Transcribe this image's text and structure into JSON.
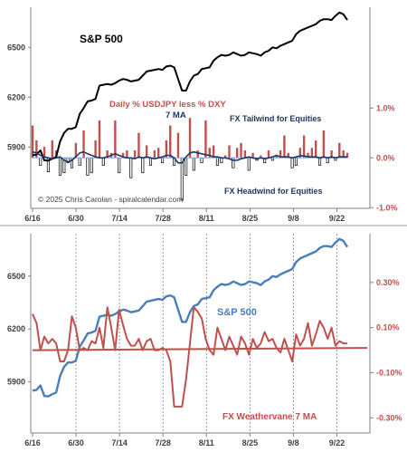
{
  "chart_data": [
    {
      "type": "line",
      "title": "",
      "x_ticks": [
        "6/16",
        "6/30",
        "7/14",
        "7/28",
        "8/11",
        "8/25",
        "9/8",
        "9/22"
      ],
      "left_axis": {
        "ticks": [
          5900,
          6200,
          6500
        ],
        "ylim": [
          5520,
          6720
        ],
        "tick_labels": [
          "5900",
          "6200",
          "6500"
        ]
      },
      "right_axis": {
        "ticks": [
          -1.0,
          0.0,
          1.0
        ],
        "ylim": [
          -1.05,
          2.95
        ],
        "tick_labels": [
          "-1.0%",
          "0.0%",
          "1.0%"
        ]
      },
      "annotations": {
        "sp500": "S&P 500",
        "daily": "Daily % USDJPY less % DXY",
        "ma7": "7 MA",
        "tailwind": "FX Tailwind for Equities",
        "headwind": "FX Headwind for Equities",
        "copyright": "© 2025 Chris Carolan - spiralcalendar.com"
      },
      "colors": {
        "sp500": "#000000",
        "bars": "#c0504d",
        "ma": "#1f3864",
        "right_axis": "#c0504d"
      },
      "series": [
        {
          "name": "S&P 500",
          "axis": "left",
          "values": [
            5850,
            5855,
            5880,
            5820,
            5818,
            5830,
            5840,
            5935,
            5985,
            6010,
            6010,
            6020,
            6100,
            6135,
            6175,
            6180,
            6190,
            6270,
            6275,
            6280,
            6275,
            6285,
            6300,
            6310,
            6305,
            6295,
            6300,
            6305,
            6330,
            6355,
            6360,
            6365,
            6370,
            6365,
            6385,
            6390,
            6380,
            6310,
            6240,
            6240,
            6295,
            6330,
            6340,
            6370,
            6375,
            6380,
            6420,
            6440,
            6455,
            6450,
            6455,
            6470,
            6460,
            6450,
            6455,
            6470,
            6465,
            6460,
            6450,
            6470,
            6480,
            6500,
            6495,
            6510,
            6520,
            6530,
            6540,
            6580,
            6600,
            6610,
            6620,
            6630,
            6640,
            6660,
            6670,
            6670,
            6665,
            6690,
            6710,
            6700,
            6665
          ]
        },
        {
          "name": "",
          "axis": "right",
          "type": "bar",
          "values": [
            0.65,
            0.35,
            -0.15,
            0.22,
            -0.28,
            0.35,
            0.15,
            -0.35,
            -0.3,
            -0.1,
            -0.2,
            0.3,
            -0.15,
            0.55,
            -0.35,
            -0.3,
            0.35,
            0.75,
            -0.15,
            0.15,
            0.1,
            0.75,
            -0.3,
            0.1,
            0.15,
            -0.4,
            0.15,
            0.5,
            -0.3,
            0.25,
            -0.15,
            0.15,
            0.2,
            -0.1,
            0.35,
            0.65,
            -0.15,
            0.5,
            -0.85,
            -0.35,
            0.8,
            -0.25,
            0.15,
            -0.1,
            0.75,
            0.2,
            0.25,
            -0.15,
            -0.1,
            0.05,
            0.25,
            -0.2,
            0.2,
            0.3,
            0.15,
            -0.25,
            0.1,
            -0.05,
            0.05,
            -0.1,
            0.15,
            -0.05,
            0.05,
            0.15,
            0.45,
            0.1,
            -0.2,
            -0.15,
            0.2,
            0.45,
            0.1,
            0.2,
            0.35,
            -0.15,
            0.55,
            -0.1,
            0.15,
            -0.05,
            0.3,
            0.15,
            0.1
          ]
        },
        {
          "name": "",
          "axis": "right",
          "values": [
            0.12,
            0.1,
            0.05,
            0.02,
            0.0,
            -0.02,
            0.0,
            0.02,
            -0.05,
            -0.08,
            -0.05,
            0.02,
            0.1,
            0.12,
            0.08,
            0.05,
            0.02,
            0.0,
            0.0,
            0.02,
            0.05,
            0.08,
            0.05,
            0.02,
            0.0,
            0.0,
            -0.02,
            0.02,
            0.0,
            0.02,
            0.0,
            -0.02,
            0.0,
            0.02,
            0.05,
            0.05,
            0.0,
            -0.1,
            -0.1,
            0.02,
            0.1,
            0.12,
            0.1,
            0.08,
            0.06,
            0.05,
            0.02,
            0.02,
            0.0,
            0.0,
            -0.02,
            -0.05,
            -0.05,
            -0.02,
            0.0,
            0.02,
            0.0,
            -0.02,
            0.0,
            -0.02,
            0.0,
            0.02,
            0.05,
            0.02,
            0.02,
            0.02,
            0.0,
            0.02,
            0.04,
            0.04,
            0.02,
            0.02,
            0.02,
            0.0,
            0.02,
            0.0,
            0.02,
            0.0,
            0.02,
            0.02,
            0.02
          ]
        }
      ]
    },
    {
      "type": "line",
      "title": "",
      "x_ticks": [
        "6/16",
        "6/30",
        "7/14",
        "7/28",
        "8/11",
        "8/25",
        "9/8",
        "9/22"
      ],
      "left_axis": {
        "ticks": [
          5900,
          6200,
          6500
        ],
        "ylim": [
          5600,
          6720
        ],
        "tick_labels": [
          "5900",
          "6200",
          "6500"
        ]
      },
      "right_axis": {
        "ticks": [
          -0.3,
          -0.1,
          0.1,
          0.3
        ],
        "ylim": [
          -0.375,
          0.5
        ],
        "tick_labels": [
          "-0.30%",
          "-0.10%",
          "0.10%",
          "0.30%"
        ]
      },
      "grid": "vertical dashed",
      "annotations": {
        "sp500": "S&P 500",
        "weathervane": "FX Weathervane 7 MA"
      },
      "colors": {
        "sp500": "#4a7ebb",
        "weathervane": "#c0504d",
        "right_axis": "#c0504d"
      },
      "series": [
        {
          "name": "S&P 500",
          "axis": "left",
          "values": [
            5850,
            5855,
            5880,
            5820,
            5818,
            5830,
            5840,
            5935,
            5985,
            6010,
            6010,
            6020,
            6100,
            6135,
            6175,
            6180,
            6190,
            6270,
            6275,
            6280,
            6275,
            6285,
            6300,
            6310,
            6305,
            6295,
            6300,
            6305,
            6330,
            6355,
            6360,
            6365,
            6370,
            6365,
            6385,
            6390,
            6380,
            6310,
            6240,
            6240,
            6295,
            6330,
            6340,
            6370,
            6375,
            6380,
            6420,
            6440,
            6455,
            6450,
            6455,
            6470,
            6460,
            6450,
            6455,
            6470,
            6465,
            6460,
            6450,
            6470,
            6480,
            6500,
            6495,
            6510,
            6520,
            6530,
            6540,
            6580,
            6600,
            6610,
            6620,
            6630,
            6640,
            6660,
            6670,
            6670,
            6665,
            6690,
            6710,
            6700,
            6665
          ]
        },
        {
          "name": "",
          "axis": "right",
          "values": [
            0.16,
            0.12,
            0.0,
            0.06,
            0.03,
            0.05,
            0.03,
            -0.05,
            -0.05,
            0.0,
            0.15,
            0.1,
            0.0,
            0.01,
            0.0,
            0.04,
            0.03,
            0.1,
            0.01,
            0.19,
            0.1,
            0.0,
            0.18,
            0.11,
            0.05,
            0.02,
            0.02,
            0.05,
            0.0,
            0.04,
            0.05,
            0.0,
            0.0,
            0.01,
            0.0,
            -0.05,
            -0.25,
            -0.25,
            -0.25,
            -0.13,
            0.03,
            0.19,
            0.17,
            0.14,
            0.05,
            0.0,
            -0.02,
            0.1,
            0.05,
            0.0,
            0.06,
            0.02,
            -0.02,
            0.06,
            0.03,
            -0.02,
            0.05,
            0.01,
            0.03,
            0.08,
            0.04,
            0.05,
            0.01,
            -0.01,
            0.05,
            0.0,
            -0.05,
            0.07,
            0.02,
            0.05,
            0.12,
            0.02,
            0.07,
            0.13,
            0.1,
            0.05,
            0.1,
            0.02,
            0.04,
            0.03,
            0.03
          ]
        },
        {
          "name": "",
          "axis": "right",
          "values": [
            0.0,
            0.01
          ]
        }
      ]
    }
  ]
}
